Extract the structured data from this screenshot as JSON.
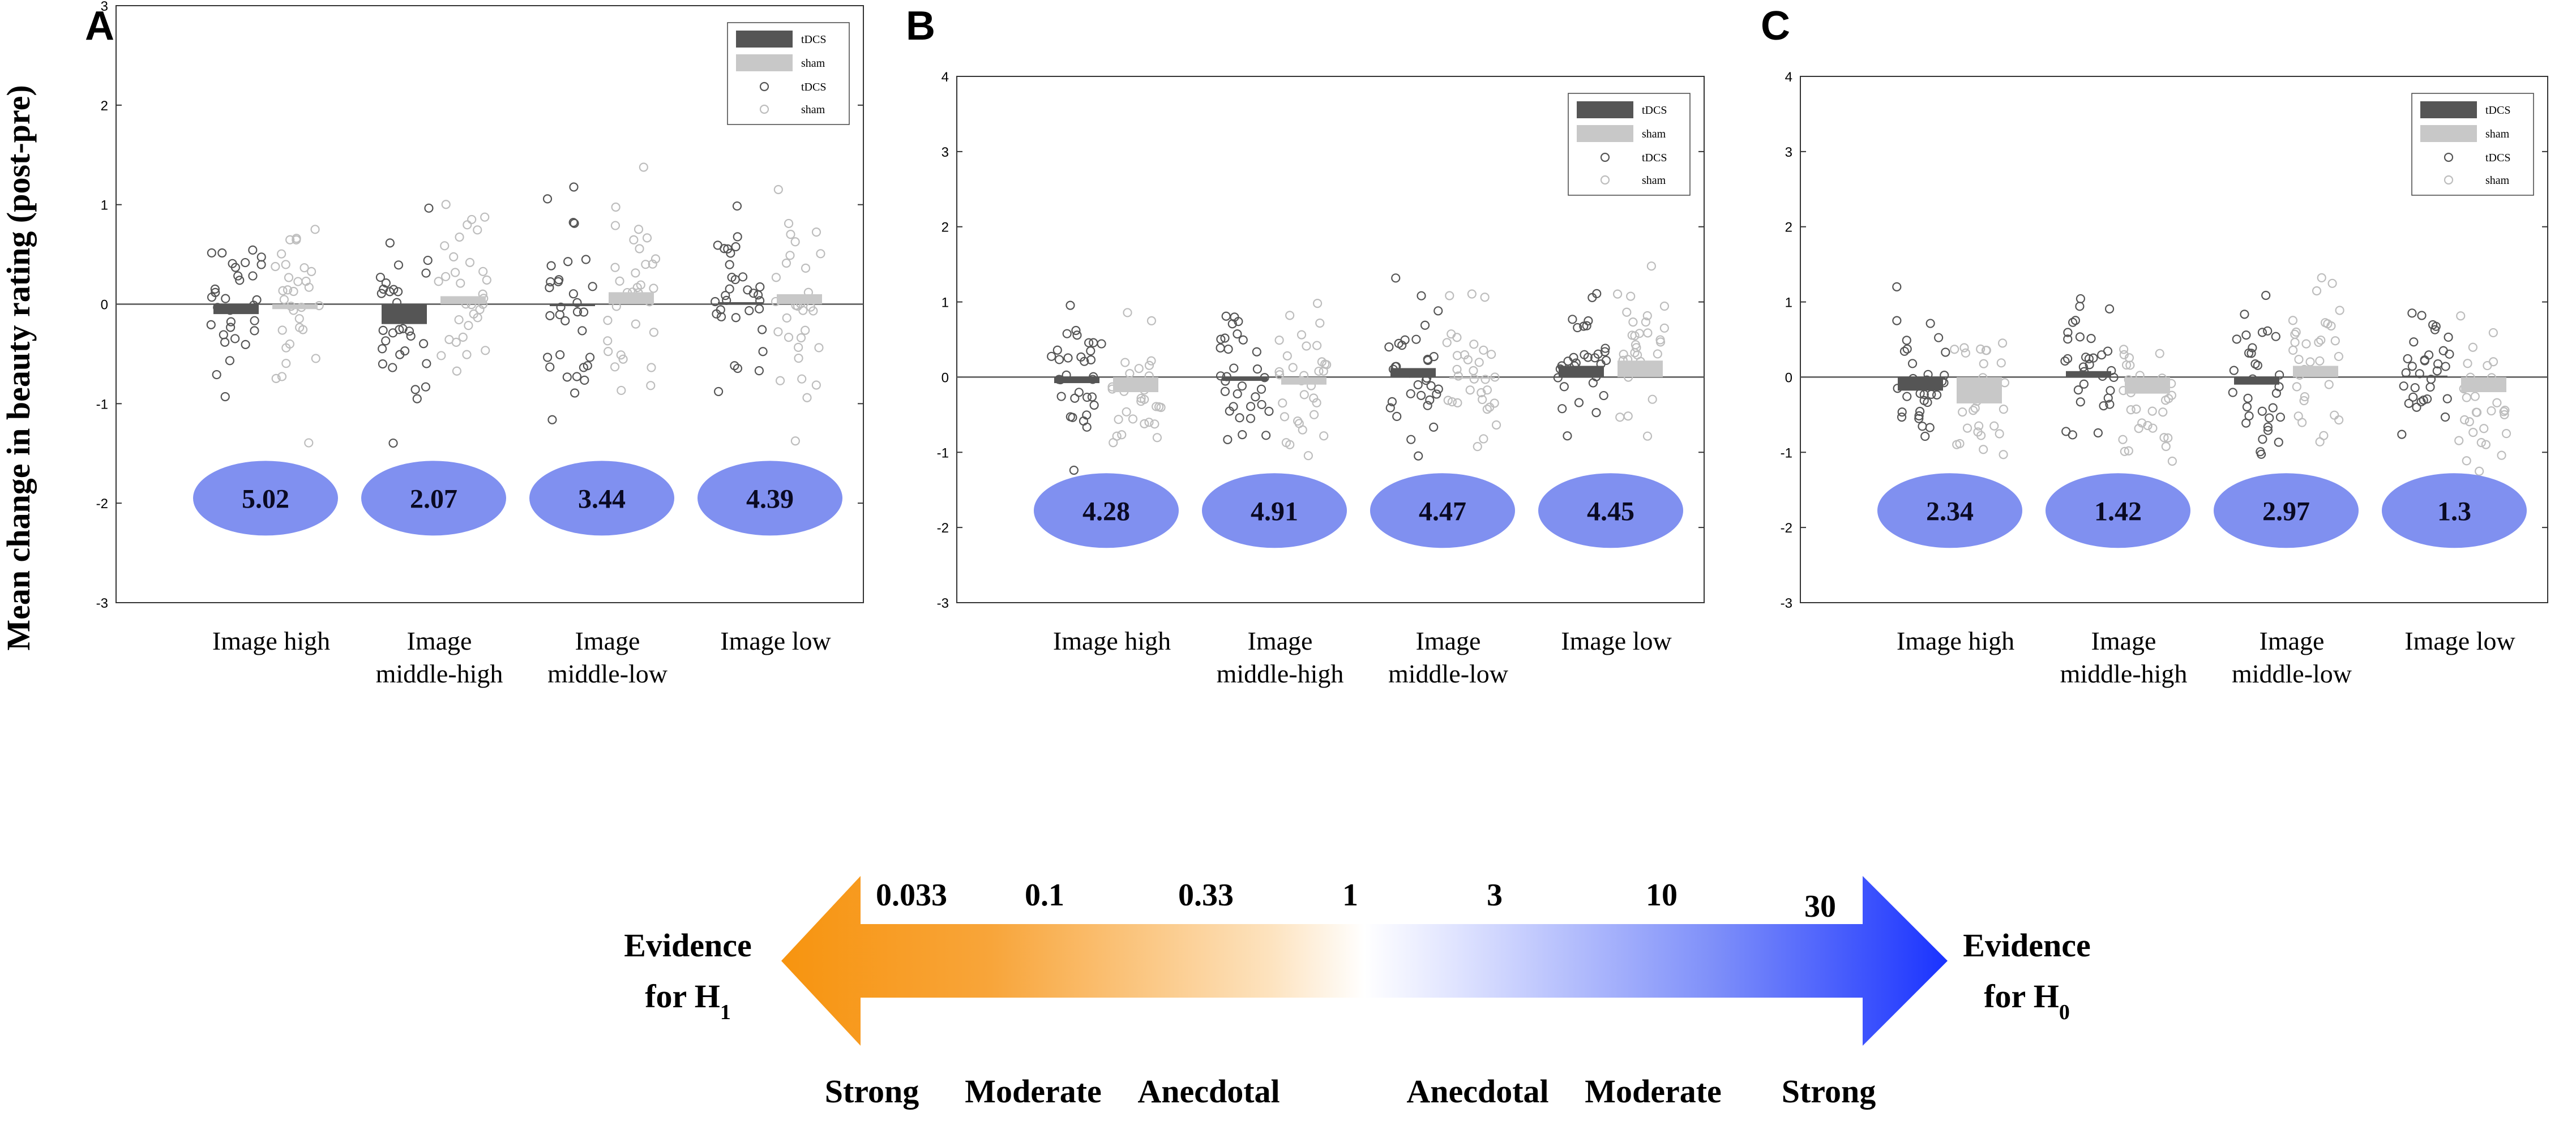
{
  "ylabel": "Mean change in beauty rating (post-pre)",
  "categories": [
    "Image high",
    "Image middle-high",
    "Image middle-low",
    "Image low"
  ],
  "category_lines": [
    [
      "Image high"
    ],
    [
      "Image",
      "middle-high"
    ],
    [
      "Image",
      "middle-low"
    ],
    [
      "Image low"
    ]
  ],
  "legend": {
    "bar_tdcs": "tDCS",
    "bar_sham": "sham",
    "point_tdcs": "tDCS",
    "point_sham": "sham"
  },
  "colors": {
    "tdcs": "#555555",
    "sham": "#c8c8c8",
    "bf_ellipse": "#8090f0",
    "orange": "#f7940f",
    "blue": "#1a33ff"
  },
  "chart_data": [
    {
      "type": "bar+scatter",
      "panel": "A",
      "ylim": [
        -3,
        3
      ],
      "yticks": [
        "3",
        "2",
        "1",
        "0",
        "-1",
        "-2",
        "-3"
      ],
      "series": [
        {
          "name": "tDCS",
          "values": [
            -0.1,
            -0.2,
            -0.02,
            0.02
          ]
        },
        {
          "name": "sham",
          "values": [
            -0.05,
            0.08,
            0.12,
            0.1
          ]
        }
      ],
      "bayes_factors": [
        "5.02",
        "2.07",
        "3.44",
        "4.39"
      ]
    },
    {
      "type": "bar+scatter",
      "panel": "B",
      "ylim": [
        -3,
        4
      ],
      "yticks": [
        "4",
        "3",
        "2",
        "1",
        "0",
        "-1",
        "-2",
        "-3"
      ],
      "series": [
        {
          "name": "tDCS",
          "values": [
            -0.08,
            -0.05,
            0.12,
            0.15
          ]
        },
        {
          "name": "sham",
          "values": [
            -0.2,
            -0.1,
            0.0,
            0.22
          ]
        }
      ],
      "bayes_factors": [
        "4.28",
        "4.91",
        "4.47",
        "4.45"
      ]
    },
    {
      "type": "bar+scatter",
      "panel": "C",
      "ylim": [
        -3,
        4
      ],
      "yticks": [
        "4",
        "3",
        "2",
        "1",
        "0",
        "-1",
        "-2",
        "-3"
      ],
      "series": [
        {
          "name": "tDCS",
          "values": [
            -0.18,
            0.08,
            -0.1,
            0.02
          ]
        },
        {
          "name": "sham",
          "values": [
            -0.35,
            -0.22,
            0.15,
            -0.2
          ]
        }
      ],
      "bayes_factors": [
        "2.34",
        "1.42",
        "2.97",
        "1.3"
      ]
    }
  ],
  "scale": {
    "ticks": [
      "0.033",
      "0.1",
      "0.33",
      "1",
      "3",
      "10",
      "30"
    ],
    "bottom_labels": [
      "Strong",
      "Moderate",
      "Anecdotal",
      "Anecdotal",
      "Moderate",
      "Strong"
    ],
    "left_line1": "Evidence",
    "left_line2": "for H",
    "left_sub": "1",
    "right_line1": "Evidence",
    "right_line2": "for H",
    "right_sub": "0"
  }
}
